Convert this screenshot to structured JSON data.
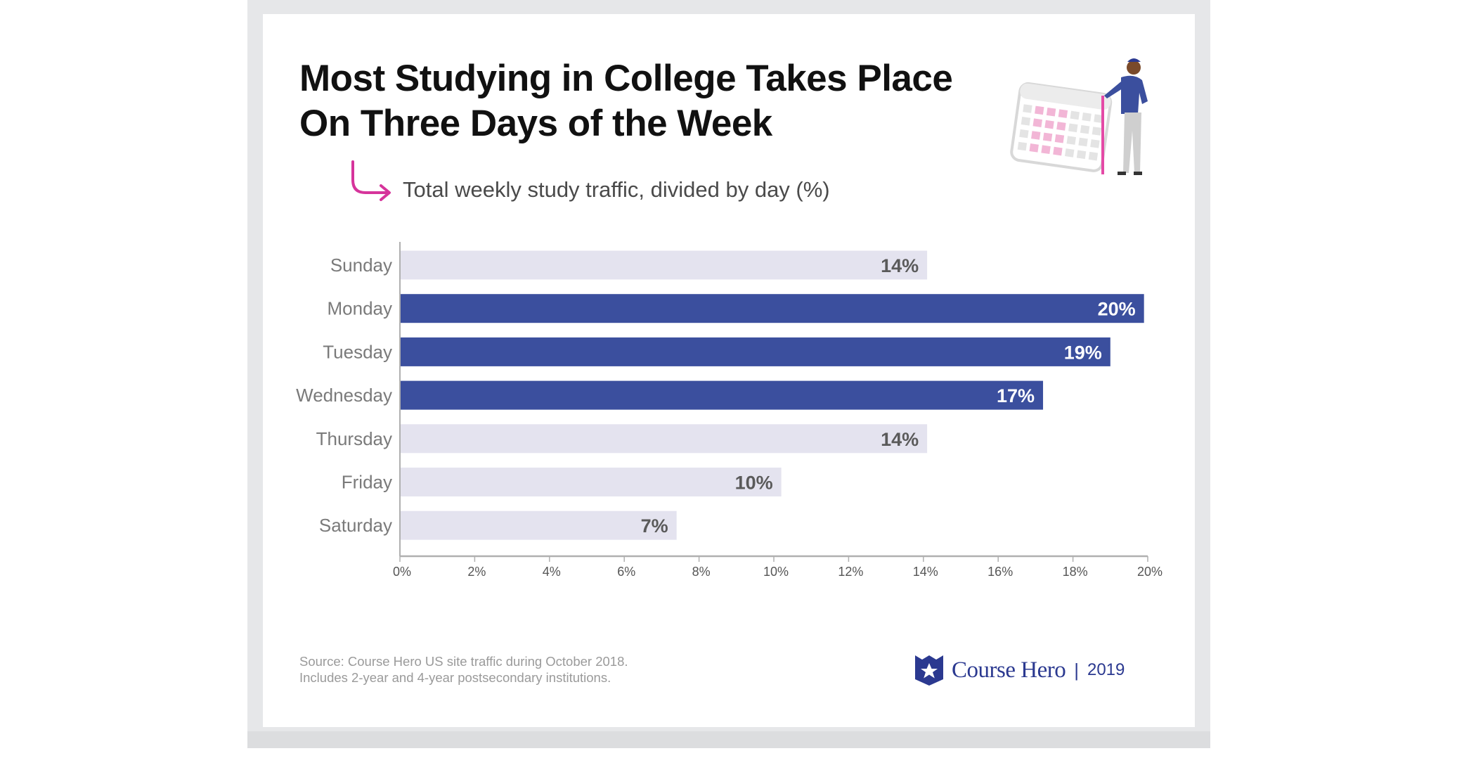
{
  "header": {
    "title_line1": "Most Studying in College Takes Place",
    "title_line2": "On Three Days of the Week",
    "subtitle": "Total weekly study traffic, divided by day (%)"
  },
  "chart_data": {
    "type": "bar",
    "orientation": "horizontal",
    "categories": [
      "Sunday",
      "Monday",
      "Tuesday",
      "Wednesday",
      "Thursday",
      "Friday",
      "Saturday"
    ],
    "values": [
      14.1,
      19.9,
      19.0,
      17.2,
      14.1,
      10.2,
      7.4
    ],
    "data_labels": [
      "14%",
      "20%",
      "19%",
      "17%",
      "14%",
      "10%",
      "7%"
    ],
    "highlighted": [
      false,
      true,
      true,
      true,
      false,
      false,
      false
    ],
    "xlim": [
      0,
      20
    ],
    "x_ticks": [
      "0%",
      "2%",
      "4%",
      "6%",
      "8%",
      "10%",
      "12%",
      "14%",
      "16%",
      "18%",
      "20%"
    ],
    "grid": false,
    "colors": {
      "highlight": "#3b4f9e",
      "normal": "#e4e3ef",
      "label_on_highlight": "#ffffff",
      "label_on_normal": "#5a5a5a",
      "axis": "#b0b0b0"
    }
  },
  "footer": {
    "source_line1": "Source: Course Hero US site traffic during October 2018.",
    "source_line2": "Includes 2-year and 4-year postsecondary institutions.",
    "brand": "Course Hero",
    "separator": "|",
    "year": "2019"
  },
  "colors": {
    "accent_arrow": "#d6349b",
    "brand": "#2b3990"
  }
}
